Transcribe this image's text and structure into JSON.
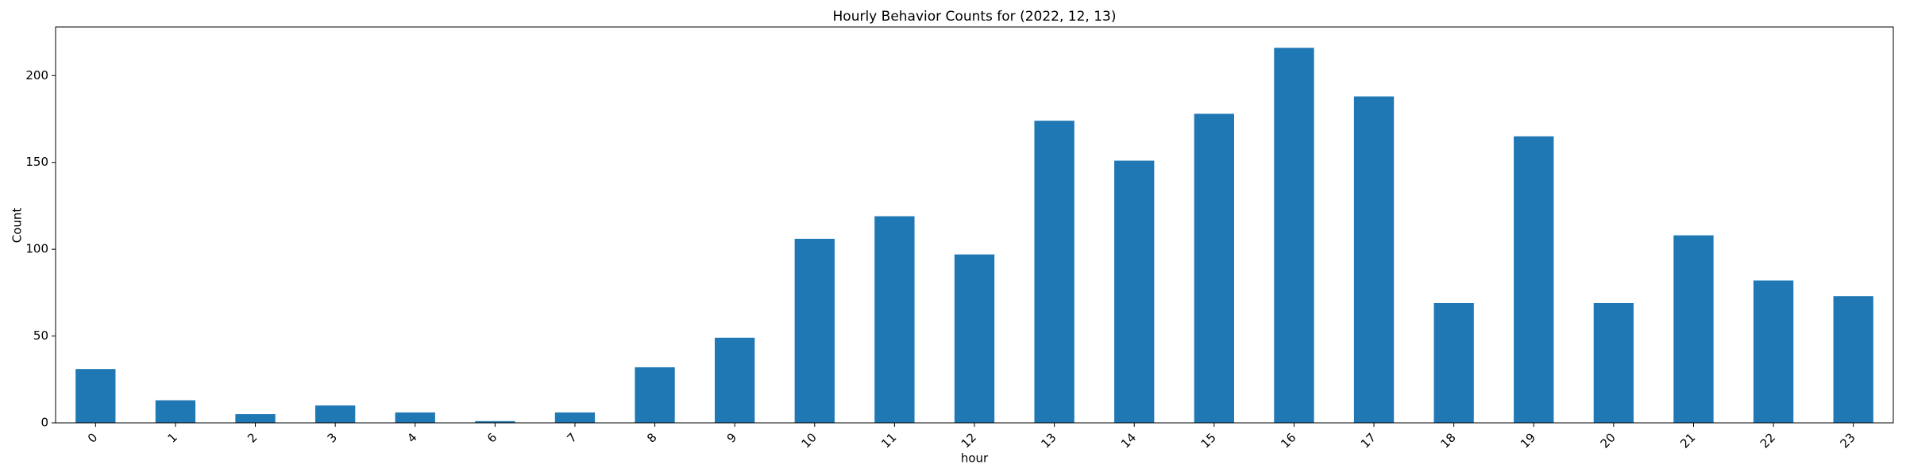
{
  "chart_data": {
    "type": "bar",
    "title": "Hourly Behavior Counts for (2022, 12, 13)",
    "x_label": "hour",
    "y_label": "Count",
    "categories": [
      "0",
      "1",
      "2",
      "3",
      "4",
      "6",
      "7",
      "8",
      "9",
      "10",
      "11",
      "12",
      "13",
      "14",
      "15",
      "16",
      "17",
      "18",
      "19",
      "20",
      "21",
      "22",
      "23"
    ],
    "values": [
      31,
      13,
      5,
      10,
      6,
      1,
      6,
      32,
      49,
      106,
      119,
      97,
      174,
      151,
      178,
      216,
      188,
      69,
      165,
      69,
      108,
      82,
      73
    ],
    "color": "#1f77b4",
    "ylim": [
      0,
      228
    ],
    "yticks": [
      0,
      50,
      100,
      150,
      200
    ],
    "grid": false
  }
}
